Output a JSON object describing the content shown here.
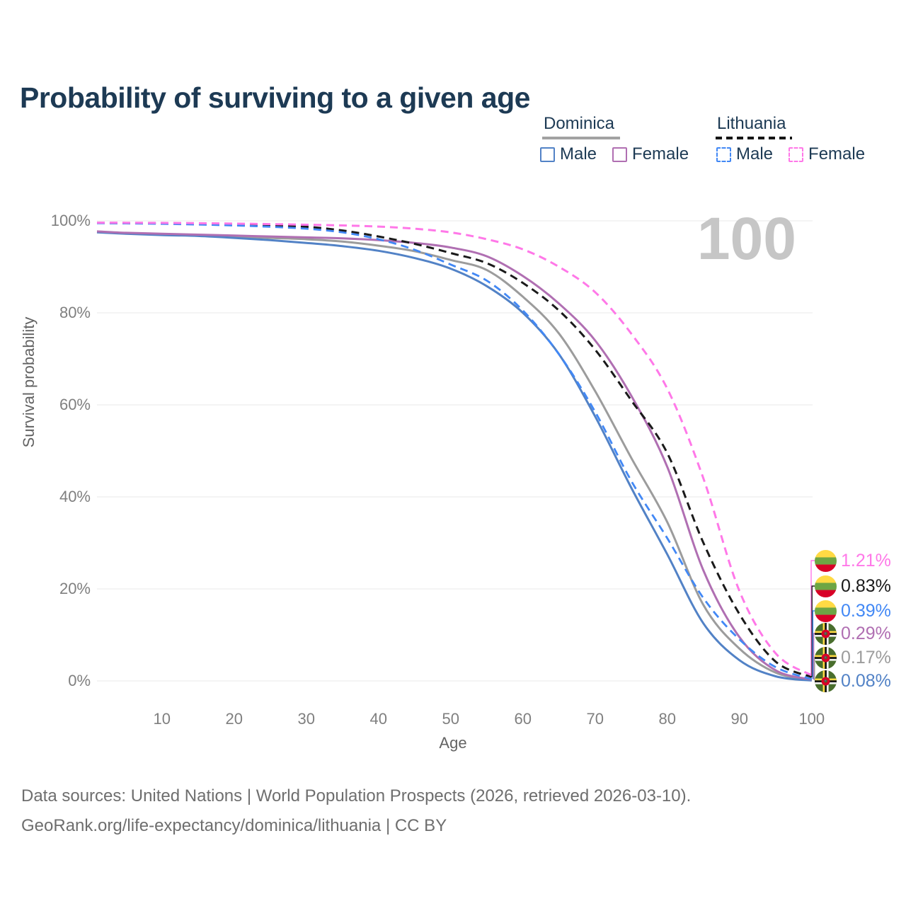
{
  "title": "Probability of surviving to a given age",
  "watermark": "100",
  "legend": {
    "groups": [
      {
        "name": "Dominica",
        "line_style": "solid",
        "underline_color": "#a2a2a2",
        "items": [
          {
            "label": "Male",
            "color": "#5282c6"
          },
          {
            "label": "Female",
            "color": "#b06fb2"
          }
        ]
      },
      {
        "name": "Lithuania",
        "line_style": "dashed",
        "underline_color": "#151515",
        "items": [
          {
            "label": "Male",
            "color": "#4288f5"
          },
          {
            "label": "Female",
            "color": "#ff78e8"
          }
        ]
      }
    ]
  },
  "chart_data": {
    "type": "line",
    "title": "Probability of surviving to a given age",
    "xlabel": "Age",
    "ylabel": "Survival probability",
    "xlim": [
      0,
      100
    ],
    "ylim": [
      0,
      100
    ],
    "grid": true,
    "legend_position": "top-right",
    "x_ticks": [
      10,
      20,
      30,
      40,
      50,
      60,
      70,
      80,
      90,
      100
    ],
    "y_ticks": [
      {
        "value": 0,
        "label": "0%"
      },
      {
        "value": 20,
        "label": "20%"
      },
      {
        "value": 40,
        "label": "40%"
      },
      {
        "value": 60,
        "label": "60%"
      },
      {
        "value": 80,
        "label": "80%"
      },
      {
        "value": 100,
        "label": "100%"
      }
    ],
    "ages": [
      1,
      5,
      10,
      15,
      20,
      25,
      30,
      35,
      40,
      45,
      50,
      55,
      60,
      65,
      70,
      75,
      80,
      85,
      90,
      95,
      100
    ],
    "series": [
      {
        "name": "Dominica",
        "country": "Dominica",
        "sex": "both",
        "style": "solid",
        "color": "#9c9c9c",
        "width": 3,
        "values": [
          97.6,
          97.3,
          97.1,
          96.9,
          96.6,
          96.3,
          96.0,
          95.5,
          94.6,
          93.4,
          91.5,
          89.3,
          83.5,
          75.5,
          63.0,
          48.5,
          34.5,
          16.5,
          7.0,
          1.8,
          0.17
        ],
        "end_label": "0.17%"
      },
      {
        "name": "Dominica Male",
        "country": "Dominica",
        "sex": "Male",
        "style": "solid",
        "color": "#5282c6",
        "width": 3,
        "values": [
          97.5,
          97.2,
          96.9,
          96.7,
          96.3,
          95.8,
          95.2,
          94.5,
          93.5,
          91.9,
          89.6,
          85.8,
          80.0,
          71.0,
          57.5,
          42.0,
          27.5,
          12.5,
          4.5,
          1.0,
          0.08
        ],
        "end_label": "0.08%"
      },
      {
        "name": "Dominica Female",
        "country": "Dominica",
        "sex": "Female",
        "style": "solid",
        "color": "#b06fb2",
        "width": 3,
        "values": [
          97.7,
          97.4,
          97.2,
          97.0,
          96.8,
          96.6,
          96.4,
          96.2,
          95.8,
          95.2,
          94.2,
          92.3,
          88.0,
          82.0,
          74.0,
          62.0,
          46.5,
          24.0,
          9.5,
          2.3,
          0.29
        ],
        "end_label": "0.29%"
      },
      {
        "name": "Lithuania",
        "country": "Lithuania",
        "sex": "both",
        "style": "dashed",
        "color": "#1a1a1a",
        "width": 3,
        "values": [
          99.55,
          99.5,
          99.45,
          99.35,
          99.2,
          99.0,
          98.7,
          97.9,
          96.6,
          95.0,
          93.0,
          90.8,
          86.5,
          80.5,
          72.0,
          61.0,
          49.5,
          30.0,
          14.5,
          4.2,
          0.83
        ],
        "end_label": "0.83%"
      },
      {
        "name": "Lithuania Male",
        "country": "Lithuania",
        "sex": "Male",
        "style": "dashed",
        "color": "#4288f5",
        "width": 2.8,
        "values": [
          99.5,
          99.45,
          99.35,
          99.2,
          99.0,
          98.7,
          98.3,
          97.5,
          96.0,
          93.7,
          90.5,
          87.0,
          80.5,
          71.0,
          58.5,
          43.5,
          31.0,
          18.0,
          9.0,
          3.0,
          0.39
        ],
        "end_label": "0.39%"
      },
      {
        "name": "Lithuania Female",
        "country": "Lithuania",
        "sex": "Female",
        "style": "dashed",
        "color": "#ff78e8",
        "width": 3,
        "values": [
          99.6,
          99.58,
          99.55,
          99.5,
          99.4,
          99.3,
          99.15,
          99.0,
          98.75,
          98.3,
          97.5,
          96.0,
          93.8,
          90.0,
          84.5,
          75.5,
          63.5,
          44.0,
          19.5,
          6.0,
          1.21
        ],
        "end_label": "1.21%"
      }
    ],
    "endpoint_labels": [
      {
        "text": "1.21%",
        "value": 1.21,
        "flag": "lithuania",
        "color": "#ff78e8"
      },
      {
        "text": "0.83%",
        "value": 0.83,
        "flag": "lithuania",
        "color": "#1a1a1a"
      },
      {
        "text": "0.39%",
        "value": 0.39,
        "flag": "lithuania",
        "color": "#4288f5"
      },
      {
        "text": "0.29%",
        "value": 0.29,
        "flag": "dominica",
        "color": "#b06fb2"
      },
      {
        "text": "0.17%",
        "value": 0.17,
        "flag": "dominica",
        "color": "#9c9c9c"
      },
      {
        "text": "0.08%",
        "value": 0.08,
        "flag": "dominica",
        "color": "#5282c6"
      }
    ]
  },
  "footer": {
    "line1": "Data sources: United Nations | World Population Prospects (2026, retrieved 2026-03-10).",
    "line2": "GeoRank.org/life-expectancy/dominica/lithuania | CC BY"
  }
}
